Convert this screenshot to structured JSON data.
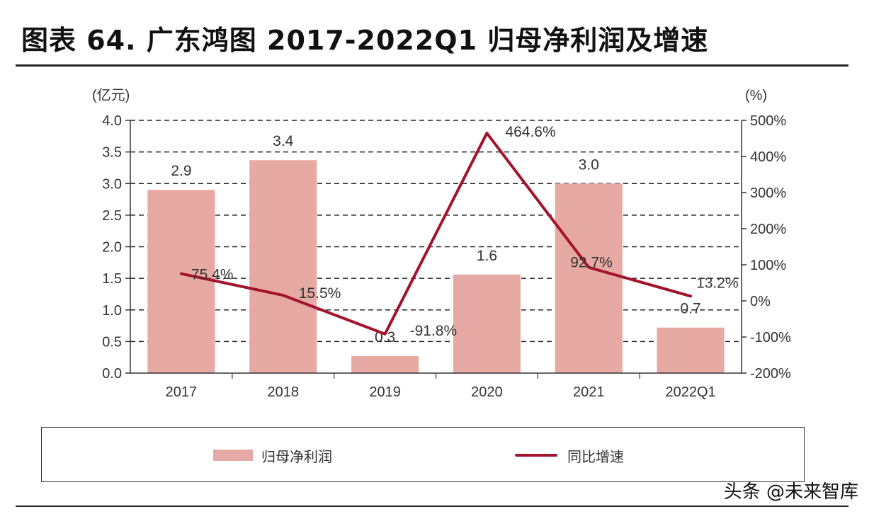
{
  "title": "图表 64. 广东鸿图 2017-2022Q1 归母净利润及增速",
  "watermark": "头条 @未来智库",
  "colors": {
    "bar": "#e7a9a4",
    "line": "#a3132c",
    "grid": "#222222",
    "axis": "#333333"
  },
  "chart_data": {
    "type": "bar+line",
    "categories": [
      "2017",
      "2018",
      "2019",
      "2020",
      "2021",
      "2022Q1"
    ],
    "series": [
      {
        "name": "归母净利润",
        "type": "bar",
        "axis": "left",
        "values": [
          2.9,
          3.37,
          0.27,
          1.56,
          3.0,
          0.72
        ],
        "labels": [
          "2.9",
          "3.4",
          "0.3",
          "1.6",
          "3.0",
          "0.7"
        ]
      },
      {
        "name": "同比增速",
        "type": "line",
        "axis": "right",
        "values": [
          75.4,
          15.5,
          -91.8,
          464.6,
          92.7,
          13.2
        ],
        "labels": [
          "75.4%",
          "15.5%",
          "-91.8%",
          "464.6%",
          "92.7%",
          "13.2%"
        ]
      }
    ],
    "left_axis": {
      "label": "(亿元)",
      "min": 0,
      "max": 4,
      "ticks": [
        "0.0",
        "0.5",
        "1.0",
        "1.5",
        "2.0",
        "2.5",
        "3.0",
        "3.5",
        "4.0"
      ]
    },
    "right_axis": {
      "label": "(%)",
      "min": -200,
      "max": 500,
      "ticks": [
        "-200%",
        "-100%",
        "0%",
        "100%",
        "200%",
        "300%",
        "400%",
        "500%"
      ]
    },
    "grid": "dashed horizontal",
    "legend_position": "bottom"
  }
}
